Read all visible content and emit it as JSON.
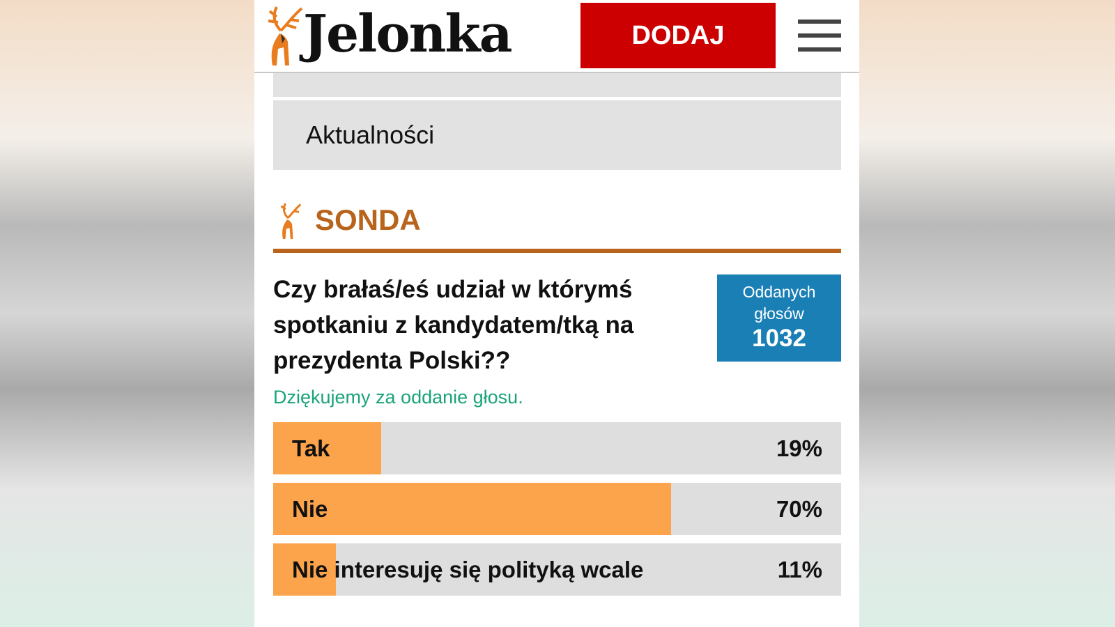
{
  "header": {
    "logo": "Jelonka",
    "button": "DODAJ"
  },
  "menu": {
    "item": "Aktualności"
  },
  "poll": {
    "heading": "SONDA",
    "question": "Czy brałaś/eś udział w którymś spotkaniu z kandydatem/tką na prezydenta Polski??",
    "votes_label": "Oddanych głosów",
    "votes": 1032,
    "thanks": "Dziękujemy za oddanie głosu."
  },
  "chart_data": {
    "type": "bar",
    "categories": [
      "Tak",
      "Nie",
      "Nie interesuję się polityką wcale"
    ],
    "values": [
      19,
      70,
      11
    ],
    "value_labels": [
      "19%",
      "70%",
      "11%"
    ],
    "xlim": [
      0,
      100
    ],
    "color": "#fba44c"
  }
}
